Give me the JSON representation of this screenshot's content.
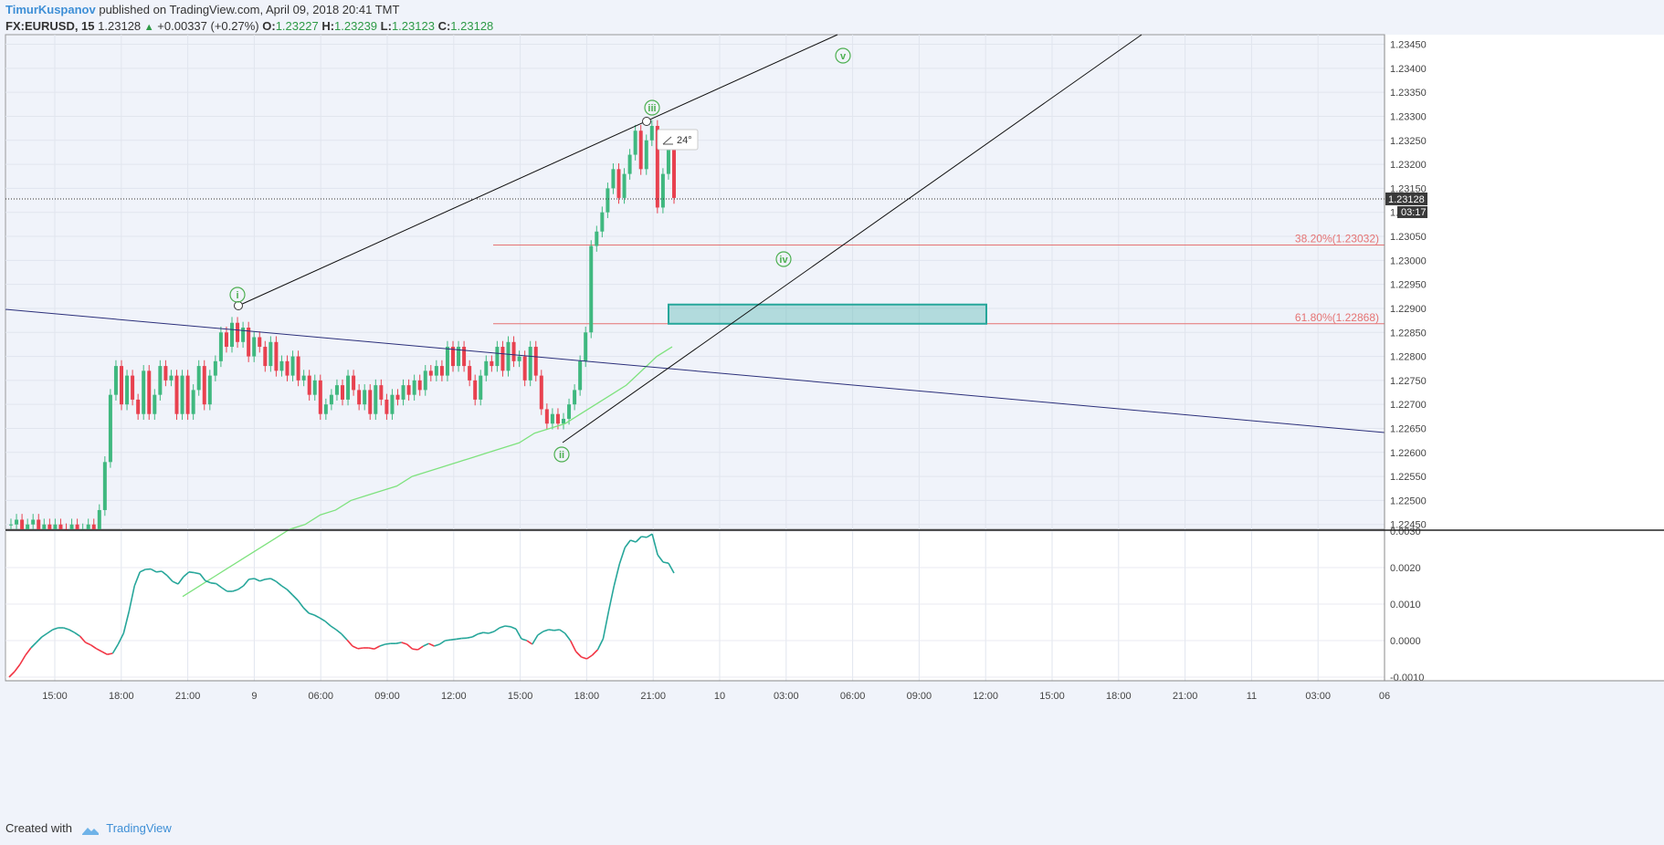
{
  "header": {
    "author": "TimurKuspanov",
    "published_text": "published on TradingView.com, April 09, 2018 20:41 TMT",
    "symbol": "FX:EURUSD, 15",
    "last": "1.23128",
    "change": "+0.00337 (+0.27%)",
    "o_label": "O:",
    "o": "1.23227",
    "h_label": "H:",
    "h": "1.23239",
    "l_label": "L:",
    "l": "1.23123",
    "c_label": "C:",
    "c": "1.23128"
  },
  "footer": {
    "created_with": "Created with",
    "brand": "TradingView"
  },
  "colors": {
    "up": "#3fb87f",
    "down": "#e8414f",
    "ma": "#7ee27e",
    "fib": "#e57373",
    "zone": "#26a69a",
    "wave": "#4caf50",
    "osc_up": "#26a69a",
    "osc_down": "#f23645"
  },
  "chart_data": [
    {
      "type": "candlestick",
      "price_axis": {
        "range": [
          1.2244,
          1.2347
        ],
        "ticks": [
          "1.23450",
          "1.23400",
          "1.23350",
          "1.23300",
          "1.23250",
          "1.23200",
          "1.23150",
          "1.23100",
          "1.23050",
          "1.23000",
          "1.22950",
          "1.22900",
          "1.22850",
          "1.22800",
          "1.22750",
          "1.22700",
          "1.22650",
          "1.22600",
          "1.22550",
          "1.22500",
          "1.22450"
        ],
        "last_price_label": "1.23128",
        "countdown": "03:17"
      },
      "time_axis": {
        "labels": [
          "15:00",
          "18:00",
          "21:00",
          "9",
          "06:00",
          "09:00",
          "12:00",
          "15:00",
          "18:00",
          "21:00",
          "10",
          "03:00",
          "06:00",
          "09:00",
          "12:00",
          "15:00",
          "18:00",
          "21:00",
          "11",
          "03:00",
          "06"
        ]
      },
      "fibonacci": [
        {
          "label": "38.20%(1.23032)",
          "price": 1.23032
        },
        {
          "label": "61.80%(1.22868)",
          "price": 1.22868
        }
      ],
      "wave_labels": [
        "i",
        "ii",
        "iii",
        "iv",
        "v"
      ],
      "angle_label": "24°",
      "target_zone": {
        "price_from": 1.22868,
        "price_to": 1.22908
      },
      "candles_closes": [
        1.2245,
        1.2246,
        1.2244,
        1.2245,
        1.2246,
        1.2244,
        1.2245,
        1.2243,
        1.2245,
        1.2244,
        1.2243,
        1.2245,
        1.2243,
        1.2244,
        1.2245,
        1.2244,
        1.2248,
        1.2258,
        1.2272,
        1.2278,
        1.227,
        1.2276,
        1.2271,
        1.2268,
        1.2277,
        1.2268,
        1.2272,
        1.2278,
        1.2275,
        1.2276,
        1.2268,
        1.2276,
        1.2268,
        1.2273,
        1.2278,
        1.227,
        1.2276,
        1.2279,
        1.2285,
        1.2282,
        1.2287,
        1.2283,
        1.2286,
        1.228,
        1.2284,
        1.2282,
        1.2278,
        1.2283,
        1.2277,
        1.2279,
        1.2276,
        1.228,
        1.2275,
        1.2276,
        1.2272,
        1.2275,
        1.2268,
        1.227,
        1.2272,
        1.2274,
        1.2271,
        1.2276,
        1.2273,
        1.227,
        1.2273,
        1.2268,
        1.2274,
        1.2271,
        1.2268,
        1.2272,
        1.2271,
        1.2274,
        1.2272,
        1.2275,
        1.2273,
        1.2277,
        1.2276,
        1.2278,
        1.2276,
        1.2282,
        1.2278,
        1.2282,
        1.2278,
        1.2275,
        1.2271,
        1.2276,
        1.2279,
        1.2278,
        1.2282,
        1.2277,
        1.2283,
        1.2279,
        1.228,
        1.2275,
        1.2282,
        1.2276,
        1.2269,
        1.2266,
        1.2268,
        1.2266,
        1.2267,
        1.227,
        1.2273,
        1.2279,
        1.2285,
        1.2303,
        1.2306,
        1.231,
        1.2315,
        1.2319,
        1.2313,
        1.2318,
        1.2322,
        1.2327,
        1.2319,
        1.2325,
        1.2328,
        1.2311,
        1.2318,
        1.2323,
        1.2313
      ],
      "ma_values": [
        1.223,
        1.2232,
        1.2234,
        1.2236,
        1.2238,
        1.224,
        1.2242,
        1.2244,
        1.2245,
        1.2247,
        1.2248,
        1.225,
        1.2251,
        1.2252,
        1.2253,
        1.2255,
        1.2256,
        1.2257,
        1.2258,
        1.2259,
        1.226,
        1.2261,
        1.2262,
        1.2264,
        1.2265,
        1.2266,
        1.2268,
        1.227,
        1.2272,
        1.2274,
        1.2277,
        1.228,
        1.2282
      ]
    },
    {
      "type": "line",
      "name_hidden": true,
      "y_range": [
        -0.0011,
        0.003
      ],
      "y_ticks": [
        "0.0030",
        "0.0020",
        "0.0010",
        "0.0000",
        "-0.0010"
      ],
      "values": [
        -0.001,
        -0.00085,
        -0.00065,
        -0.0004,
        -0.0002,
        -5e-05,
        0.0001,
        0.0002,
        0.0003,
        0.00035,
        0.00035,
        0.0003,
        0.00022,
        0.00012,
        -5e-05,
        -0.00012,
        -0.00022,
        -0.0003,
        -0.00038,
        -0.00035,
        -0.0001,
        0.0002,
        0.0008,
        0.0015,
        0.00188,
        0.00195,
        0.00196,
        0.00188,
        0.0019,
        0.00178,
        0.00162,
        0.00155,
        0.00175,
        0.00188,
        0.00186,
        0.00183,
        0.00164,
        0.00158,
        0.00156,
        0.00145,
        0.00135,
        0.00135,
        0.0014,
        0.0015,
        0.00168,
        0.0017,
        0.00163,
        0.00168,
        0.0017,
        0.00162,
        0.0015,
        0.0014,
        0.00125,
        0.0011,
        0.0009,
        0.00075,
        0.0007,
        0.00062,
        0.00053,
        0.0004,
        0.0003,
        0.00018,
        2e-05,
        -0.00015,
        -0.00022,
        -0.0002,
        -0.0002,
        -0.00023,
        -0.00015,
        -0.0001,
        -8e-05,
        -8e-05,
        -5e-05,
        -0.0001,
        -0.00023,
        -0.00025,
        -0.00015,
        -8e-05,
        -0.00015,
        -0.0001,
        0.0,
        2e-05,
        4e-05,
        6e-05,
        7e-05,
        0.0001,
        0.00018,
        0.00022,
        0.0002,
        0.00025,
        0.00035,
        0.0004,
        0.00038,
        0.00032,
        5e-05,
        0.0,
        -0.0001,
        0.00015,
        0.00025,
        0.0003,
        0.00028,
        0.0003,
        0.0002,
        0.0,
        -0.0003,
        -0.00045,
        -0.0005,
        -0.0004,
        -0.00025,
        5e-05,
        0.0008,
        0.0015,
        0.0021,
        0.00255,
        0.00275,
        0.0027,
        0.00285,
        0.00283,
        0.00292,
        0.00235,
        0.00215,
        0.00212,
        0.00185
      ]
    }
  ]
}
